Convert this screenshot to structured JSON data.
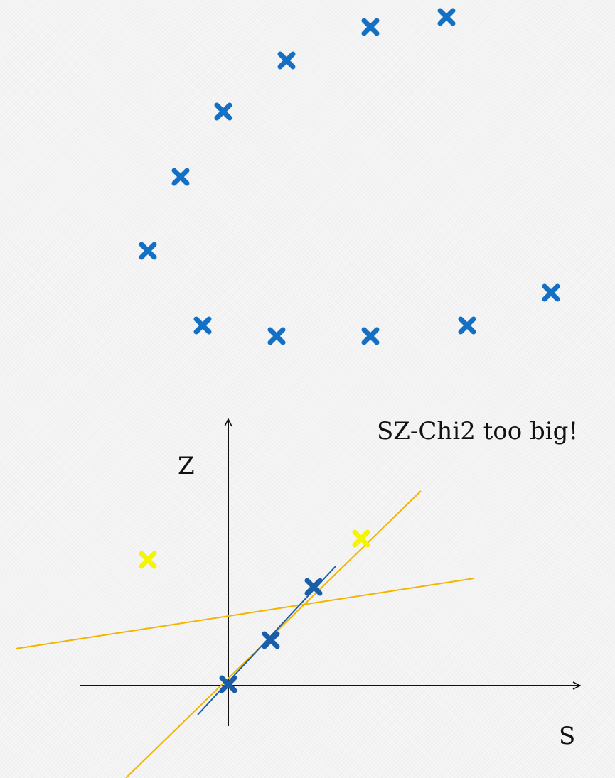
{
  "annotation": "SZ-Chi2 too big!",
  "axes": {
    "vertical_label": "Z",
    "horizontal_label": "S"
  },
  "marker_symbol": "heavy-x-marker",
  "colors": {
    "hit": "#1470c4",
    "hit_fitted": "#1a5ea8",
    "outlier": "#f5f500",
    "fit_line": "#f2b400",
    "local_fit_line": "#1a5ea8",
    "axis": "#111111"
  }
}
